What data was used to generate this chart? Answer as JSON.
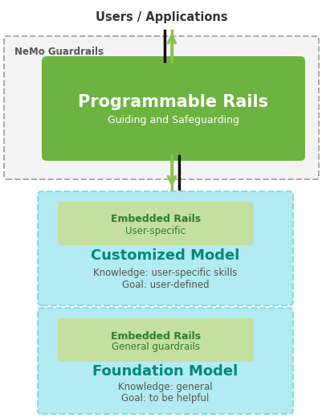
{
  "title_top": "Users / Applications",
  "nemo_label": "NeMo Guardrails",
  "prog_rails_title": "Programmable Rails",
  "prog_rails_subtitle": "Guiding and Safeguarding",
  "embedded_rails_1_title": "Embedded Rails",
  "embedded_rails_1_sub": "User-specific",
  "customized_model_title": "Customized Model",
  "customized_model_line1": "Knowledge: user-specific skills",
  "customized_model_line2": "Goal: user-defined",
  "embedded_rails_2_title": "Embedded Rails",
  "embedded_rails_2_sub": "General guardrails",
  "foundation_model_title": "Foundation Model",
  "foundation_model_line1": "Knowledge: general",
  "foundation_model_line2": "Goal: to be helpful",
  "bg_color": "#ffffff",
  "green_box_color": "#6db33f",
  "light_green_box_color": "#c5dfa0",
  "cyan_box_color": "#b2ebf2",
  "cyan_box_border": "#80deea",
  "nemo_border_color": "#aaaaaa",
  "arrow_green": "#8bc34a",
  "arrow_black": "#111111",
  "text_dark_green": "#2e7d32",
  "text_teal": "#00897b",
  "text_gray": "#555555",
  "text_dark": "#333333"
}
